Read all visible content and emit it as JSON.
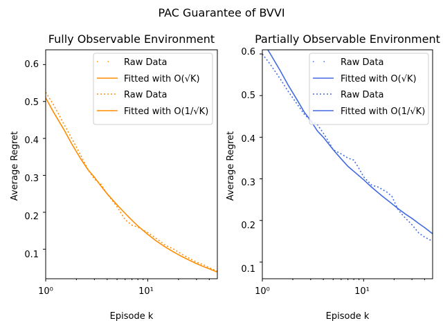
{
  "figure": {
    "title": "PAC Guarantee of BVVI"
  },
  "chart_data": [
    {
      "type": "line",
      "title": "Fully Observable Environment",
      "xlabel": "Episode k",
      "ylabel": "Average Regret",
      "xscale": "log",
      "xlim": [
        1,
        48
      ],
      "ylim": [
        0.02,
        0.64
      ],
      "x_tick_labels": [
        "10⁰",
        "10¹"
      ],
      "y_tick_labels": [
        "0.1",
        "0.2",
        "0.3",
        "0.4",
        "0.5",
        "0.6"
      ],
      "legend_position": "upper right",
      "color": "#ff8c00",
      "legend": [
        {
          "label": "Raw Data",
          "style": "dotted-sparse"
        },
        {
          "label": "Fitted with O(√K)",
          "style": "solid"
        },
        {
          "label": "Raw Data",
          "style": "dotted"
        },
        {
          "label": "Fitted with O(1/√K)",
          "style": "solid"
        }
      ],
      "series": [
        {
          "name": "Raw Data",
          "style": "dotted",
          "x": [
            1,
            1.2,
            1.5,
            1.8,
            2.2,
            2.6,
            3,
            3.5,
            4,
            5,
            6,
            7,
            8,
            10,
            12,
            15,
            18,
            22,
            26,
            30,
            35,
            40,
            48
          ],
          "y": [
            0.525,
            0.49,
            0.44,
            0.4,
            0.355,
            0.315,
            0.29,
            0.275,
            0.25,
            0.215,
            0.18,
            0.165,
            0.16,
            0.145,
            0.13,
            0.11,
            0.1,
            0.085,
            0.074,
            0.065,
            0.058,
            0.05,
            0.04
          ]
        },
        {
          "name": "Fitted with O(√K)",
          "style": "solid",
          "x": [
            1,
            1.2,
            1.5,
            1.8,
            2.2,
            2.6,
            3,
            3.5,
            4,
            5,
            6,
            7,
            8,
            10,
            12,
            15,
            18,
            22,
            26,
            30,
            35,
            40,
            48
          ],
          "y": [
            0.51,
            0.47,
            0.425,
            0.385,
            0.345,
            0.315,
            0.295,
            0.27,
            0.25,
            0.22,
            0.197,
            0.178,
            0.163,
            0.14,
            0.123,
            0.105,
            0.092,
            0.079,
            0.069,
            0.061,
            0.053,
            0.047,
            0.038
          ]
        }
      ]
    },
    {
      "type": "line",
      "title": "Partially Observable Environment",
      "xlabel": "Episode k",
      "ylabel": "Average Regret",
      "xscale": "log",
      "xlim": [
        1,
        48
      ],
      "ylim": [
        0.06,
        0.61
      ],
      "x_tick_labels": [
        "10⁰",
        "10¹"
      ],
      "y_tick_labels": [
        "0.1",
        "0.2",
        "0.3",
        "0.4",
        "0.5",
        "0.6"
      ],
      "legend_position": "upper right",
      "color": "#4169e1",
      "legend": [
        {
          "label": "Raw Data",
          "style": "dotted-sparse"
        },
        {
          "label": "Fitted with O(√K)",
          "style": "solid"
        },
        {
          "label": "Raw Data",
          "style": "dotted"
        },
        {
          "label": "Fitted with O(1/√K)",
          "style": "solid"
        }
      ],
      "series": [
        {
          "name": "Raw Data",
          "style": "dotted",
          "x": [
            1,
            1.2,
            1.5,
            1.8,
            2.2,
            2.6,
            3,
            3.5,
            4,
            4.5,
            5,
            6,
            7,
            8,
            9,
            10,
            12,
            14,
            17,
            19,
            22,
            26,
            30,
            35,
            40,
            48
          ],
          "y": [
            0.6,
            0.575,
            0.54,
            0.51,
            0.48,
            0.455,
            0.44,
            0.43,
            0.41,
            0.39,
            0.37,
            0.36,
            0.35,
            0.345,
            0.325,
            0.305,
            0.285,
            0.28,
            0.268,
            0.258,
            0.225,
            0.205,
            0.19,
            0.17,
            0.16,
            0.15
          ]
        },
        {
          "name": "Fitted with O(√K)",
          "style": "solid",
          "x": [
            1.1,
            1.2,
            1.5,
            1.8,
            2.2,
            2.6,
            3,
            3.5,
            4,
            5,
            6,
            7,
            8,
            10,
            12,
            15,
            18,
            22,
            26,
            30,
            35,
            40,
            48
          ],
          "y": [
            0.615,
            0.6,
            0.56,
            0.525,
            0.49,
            0.46,
            0.44,
            0.415,
            0.4,
            0.37,
            0.348,
            0.33,
            0.318,
            0.298,
            0.28,
            0.26,
            0.245,
            0.228,
            0.215,
            0.205,
            0.193,
            0.183,
            0.168
          ]
        }
      ]
    }
  ]
}
